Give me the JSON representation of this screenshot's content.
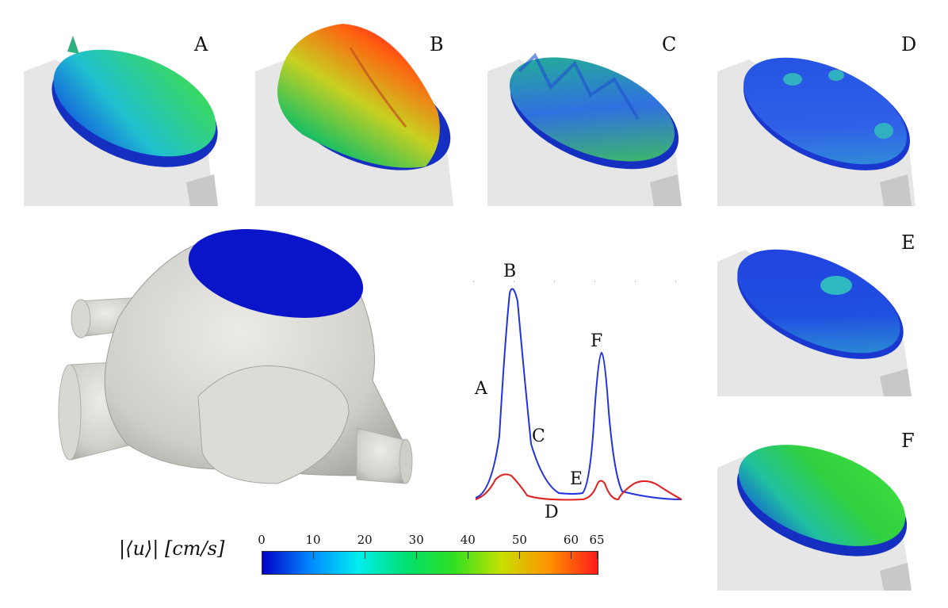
{
  "panels": [
    {
      "label": "A",
      "flow_level": 0.55
    },
    {
      "label": "B",
      "flow_level": 0.95
    },
    {
      "label": "C",
      "flow_level": 0.45
    },
    {
      "label": "D",
      "flow_level": 0.2
    },
    {
      "label": "E",
      "flow_level": 0.2
    },
    {
      "label": "F",
      "flow_level": 0.6
    }
  ],
  "waveform": {
    "labels": [
      "A",
      "B",
      "C",
      "D",
      "E",
      "F"
    ],
    "colors": {
      "blue_curve": "#2233dd",
      "red_curve": "#e02020"
    }
  },
  "colorbar": {
    "title": "|⟨u⟩| [cm/s]",
    "ticks": [
      "0",
      "10",
      "20",
      "30",
      "40",
      "50",
      "60",
      "65"
    ],
    "min": 0,
    "max": 65,
    "colors": [
      "#0000c8",
      "#0088ff",
      "#00eeee",
      "#00e070",
      "#30e020",
      "#c8e000",
      "#ff9000",
      "#ff1a1a"
    ]
  }
}
